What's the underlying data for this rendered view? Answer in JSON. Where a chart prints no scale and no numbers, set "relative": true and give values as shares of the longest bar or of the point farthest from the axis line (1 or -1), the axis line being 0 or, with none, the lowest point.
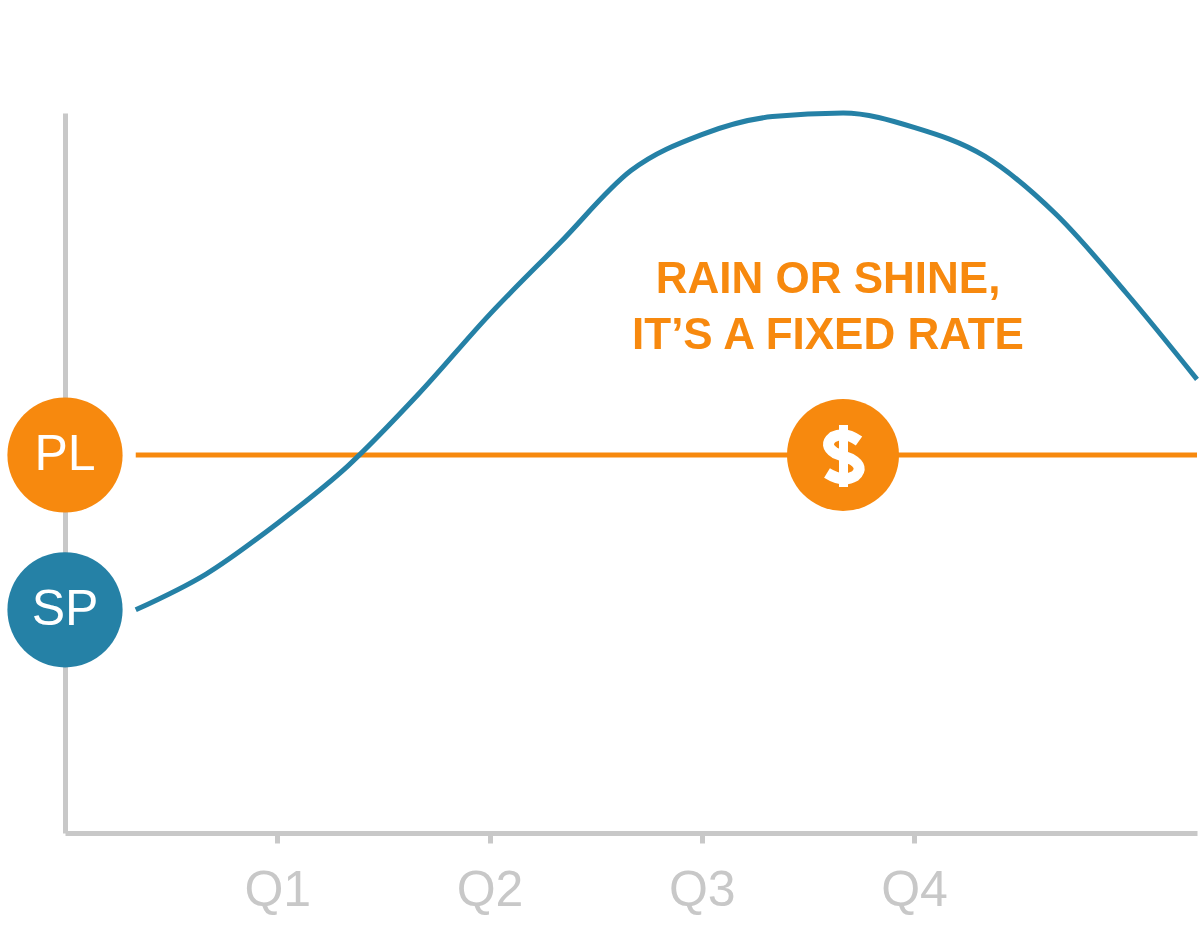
{
  "chart_data": {
    "type": "line",
    "relative": true,
    "annotations": [
      "RAIN OR SHINE,\nIT’S A FIXED RATE"
    ],
    "categories": [
      null,
      null,
      null,
      "Q1",
      null,
      null,
      "Q2",
      null,
      null,
      "Q3",
      null,
      null,
      "Q4",
      null,
      null,
      null,
      null
    ],
    "series": [
      {
        "name": "PL",
        "color": "#f7890e",
        "values": [
          null,
          0.525,
          0.525,
          0.525,
          0.525,
          0.525,
          0.525,
          0.525,
          0.525,
          0.525,
          0.525,
          null,
          0.525,
          0.525,
          0.525,
          0.525,
          0.525
        ]
      },
      {
        "name": "SP",
        "color": "#2581a6",
        "values": [
          null,
          0.31,
          0.36,
          0.43,
          0.51,
          0.61,
          0.72,
          0.82,
          0.92,
          0.97,
          0.995,
          1,
          0.98,
          0.94,
          0.86,
          0.75,
          0.63
        ]
      }
    ],
    "legend": false,
    "grid": false
  }
}
